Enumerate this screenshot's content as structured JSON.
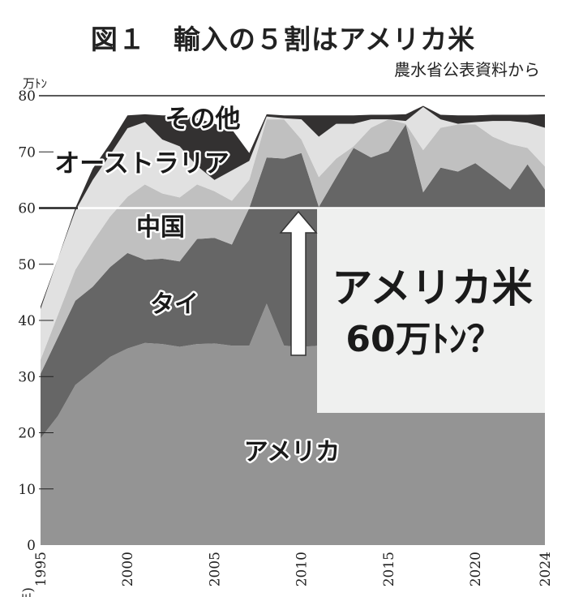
{
  "header": {
    "title": "図１　輸入の５割はアメリカ米",
    "source": "農水省公表資料から",
    "unit": "万ﾄﾝ"
  },
  "annotation": {
    "line1": "アメリカ米",
    "line2": "60万ﾄﾝ？",
    "reference_value": 60
  },
  "chart_data": {
    "type": "area",
    "stacked": true,
    "title": "図１　輸入の５割はアメリカ米",
    "xlabel": "(年)",
    "ylabel": "万ﾄﾝ",
    "ylim": [
      0,
      80
    ],
    "xlim": [
      1995,
      2024
    ],
    "yticks": [
      0,
      10,
      20,
      30,
      40,
      50,
      60,
      70,
      80
    ],
    "xticks": [
      1995,
      2000,
      2005,
      2010,
      2015,
      2020,
      2024
    ],
    "x": [
      1995,
      1996,
      1997,
      1998,
      1999,
      2000,
      2001,
      2002,
      2003,
      2004,
      2005,
      2006,
      2007,
      2008,
      2009,
      2010,
      2011,
      2012,
      2013,
      2014,
      2015,
      2016,
      2017,
      2018,
      2019,
      2020,
      2021,
      2022,
      2023,
      2024
    ],
    "series": [
      {
        "name": "アメリカ",
        "color": "#949494",
        "values": [
          19,
          23,
          28.5,
          31,
          33.5,
          35,
          36,
          35.8,
          35.3,
          35.8,
          35.9,
          35.5,
          35.5,
          43,
          35.5,
          35.3,
          35.5,
          36,
          36,
          36,
          36,
          36,
          36,
          36,
          36,
          36,
          36,
          36,
          36,
          36
        ]
      },
      {
        "name": "タイ",
        "color": "#666666",
        "values": [
          11.5,
          14,
          15,
          15,
          16,
          17,
          14.8,
          15.2,
          15.2,
          18.7,
          18.8,
          18,
          24.5,
          26,
          33.3,
          34.5,
          24.7,
          29.5,
          34.7,
          33,
          34.1,
          38.9,
          26.8,
          31.2,
          30.5,
          32,
          29.7,
          27.3,
          31.8,
          27.3
        ]
      },
      {
        "name": "中国",
        "color": "#c0c0c0",
        "values": [
          2.5,
          4,
          5.5,
          8,
          9,
          10,
          13.4,
          11.6,
          11.4,
          9.7,
          8.3,
          7.8,
          5,
          6.8,
          7,
          2.4,
          5.3,
          3.3,
          0.3,
          5.3,
          5.7,
          0.1,
          7.5,
          7.1,
          8.4,
          6.9,
          7,
          8.1,
          2.9,
          4.1
        ]
      },
      {
        "name": "オーストラリア",
        "color": "#e1e1e1",
        "values": [
          9,
          10,
          10.5,
          11,
          11,
          12.2,
          11.1,
          9.6,
          9.1,
          3.3,
          2,
          5.4,
          3.4,
          0.5,
          0.2,
          3.6,
          7.2,
          6.2,
          4,
          1.5,
          0,
          0.5,
          7.7,
          1.5,
          0.1,
          0.4,
          2.8,
          4.1,
          4.5,
          6.9
        ]
      },
      {
        "name": "その他",
        "color": "#333131",
        "values": [
          0.5,
          0,
          0.5,
          2,
          2,
          2.3,
          1.4,
          4.3,
          5.5,
          8.5,
          10,
          7.3,
          1.4,
          0.4,
          0.5,
          0.7,
          3.8,
          1.5,
          1.5,
          0.8,
          0.8,
          1.2,
          0.2,
          0.8,
          1.5,
          1.2,
          1.1,
          1.1,
          1.4,
          2.4
        ]
      }
    ],
    "overlay_box_color": "#eff0ef",
    "grid": false,
    "legend": "inline labels"
  }
}
